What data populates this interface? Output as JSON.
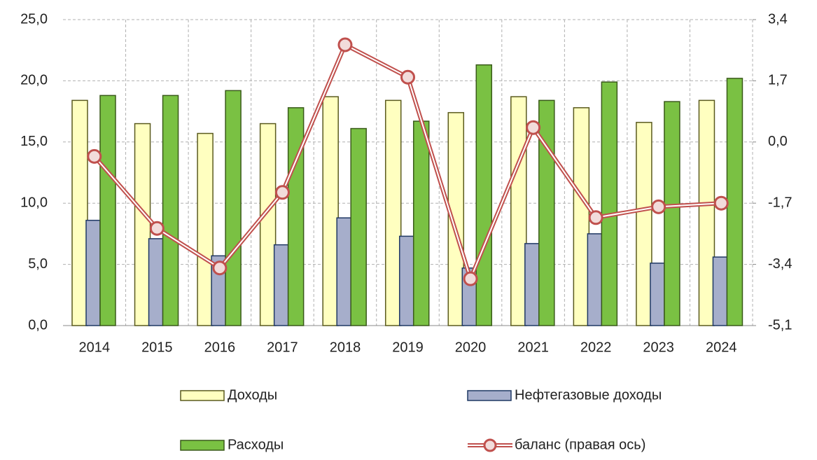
{
  "chart_data": {
    "type": "bar_line",
    "categories": [
      "2014",
      "2015",
      "2016",
      "2017",
      "2018",
      "2019",
      "2020",
      "2021",
      "2022",
      "2023",
      "2024"
    ],
    "series": [
      {
        "name": "Доходы",
        "color": "#ffffc0",
        "values": [
          18.4,
          16.5,
          15.7,
          16.5,
          18.7,
          18.4,
          17.4,
          18.7,
          17.8,
          16.6,
          18.4
        ]
      },
      {
        "name": "Нефтегазовые доходы",
        "color": "#a6aecb",
        "values": [
          8.6,
          7.1,
          5.7,
          6.6,
          8.8,
          7.3,
          4.7,
          6.7,
          7.5,
          5.1,
          5.6
        ]
      },
      {
        "name": "Расходы",
        "color": "#7ac143",
        "values": [
          18.8,
          18.8,
          19.2,
          17.8,
          16.1,
          16.7,
          21.3,
          18.4,
          19.9,
          18.3,
          20.2
        ]
      },
      {
        "name": "баланс (правая ось)",
        "color": "#c0504d",
        "axis": "y2",
        "values": [
          -0.4,
          -2.4,
          -3.5,
          -1.4,
          2.7,
          1.8,
          -3.8,
          0.4,
          -2.1,
          -1.8,
          -1.7
        ]
      }
    ],
    "ylim": [
      0,
      25
    ],
    "yticks": [
      {
        "value": 0,
        "label": "0,0"
      },
      {
        "value": 5,
        "label": "5,0"
      },
      {
        "value": 10,
        "label": "10,0"
      },
      {
        "value": 15,
        "label": "15,0"
      },
      {
        "value": 20,
        "label": "20,0"
      },
      {
        "value": 25,
        "label": "25,0"
      }
    ],
    "y2lim": [
      -5.1,
      3.4
    ],
    "y2ticks": [
      {
        "value": -5.1,
        "label": "-5,1"
      },
      {
        "value": -3.4,
        "label": "-3,4"
      },
      {
        "value": -1.7,
        "label": "-1,7"
      },
      {
        "value": 0,
        "label": "0,0"
      },
      {
        "value": 1.7,
        "label": "1,7"
      },
      {
        "value": 3.4,
        "label": "3,4"
      }
    ],
    "grid": true
  }
}
